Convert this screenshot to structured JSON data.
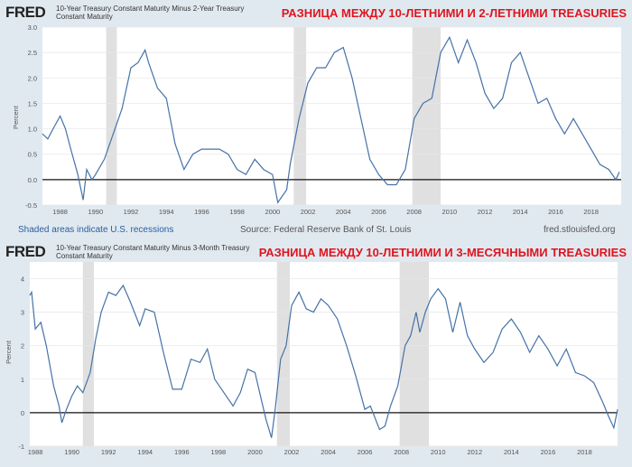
{
  "logo": "FRED",
  "colors": {
    "line": "#4572a7",
    "recession": "#e0e0e0",
    "annotation": "#e0141e",
    "background": "#e1e9f0"
  },
  "footer": {
    "note": "Shaded areas indicate U.S. recessions",
    "source": "Source: Federal Reserve Bank of St. Louis",
    "site": "fred.stlouisfed.org"
  },
  "chart_data": [
    {
      "type": "line",
      "series_title": "10-Year Treasury Constant Maturity Minus 2-Year Treasury Constant Maturity",
      "annotation": "РАЗНИЦА МЕЖДУ 10-ЛЕТНИМИ И 2-ЛЕТНИМИ TREASURIES",
      "ylabel": "Percent",
      "xlim": [
        1987.0,
        2019.7
      ],
      "ylim": [
        -0.5,
        3.0
      ],
      "yticks": [
        "-0.5",
        "0.0",
        "0.5",
        "1.0",
        "1.5",
        "2.0",
        "2.5",
        "3.0"
      ],
      "xticks": [
        "1988",
        "1990",
        "1992",
        "1994",
        "1996",
        "1998",
        "2000",
        "2002",
        "2004",
        "2006",
        "2008",
        "2010",
        "2012",
        "2014",
        "2016",
        "2018"
      ],
      "grid": true,
      "recessions": [
        [
          1990.6,
          1991.2
        ],
        [
          2001.2,
          2001.9
        ],
        [
          2007.9,
          2009.5
        ]
      ],
      "x": [
        1987.0,
        1987.3,
        1987.6,
        1988.0,
        1988.3,
        1988.6,
        1989.0,
        1989.3,
        1989.5,
        1989.8,
        1990.0,
        1990.5,
        1991.0,
        1991.5,
        1992.0,
        1992.4,
        1992.8,
        1993.0,
        1993.5,
        1994.0,
        1994.5,
        1995.0,
        1995.5,
        1996.0,
        1996.5,
        1997.0,
        1997.5,
        1998.0,
        1998.5,
        1999.0,
        1999.5,
        2000.0,
        2000.3,
        2000.8,
        2001.0,
        2001.5,
        2002.0,
        2002.5,
        2003.0,
        2003.5,
        2004.0,
        2004.5,
        2005.0,
        2005.5,
        2006.0,
        2006.5,
        2007.0,
        2007.5,
        2008.0,
        2008.5,
        2009.0,
        2009.5,
        2010.0,
        2010.5,
        2011.0,
        2011.5,
        2012.0,
        2012.5,
        2013.0,
        2013.5,
        2014.0,
        2014.5,
        2015.0,
        2015.5,
        2016.0,
        2016.5,
        2017.0,
        2017.5,
        2018.0,
        2018.5,
        2019.0,
        2019.4,
        2019.6
      ],
      "values": [
        0.9,
        0.8,
        1.0,
        1.25,
        1.0,
        0.6,
        0.1,
        -0.4,
        0.2,
        0.0,
        0.1,
        0.4,
        0.9,
        1.4,
        2.2,
        2.3,
        2.55,
        2.3,
        1.8,
        1.6,
        0.7,
        0.2,
        0.5,
        0.6,
        0.6,
        0.6,
        0.5,
        0.2,
        0.1,
        0.4,
        0.2,
        0.1,
        -0.45,
        -0.2,
        0.3,
        1.2,
        1.9,
        2.2,
        2.2,
        2.5,
        2.6,
        2.0,
        1.2,
        0.4,
        0.1,
        -0.1,
        -0.1,
        0.2,
        1.2,
        1.5,
        1.6,
        2.5,
        2.8,
        2.3,
        2.75,
        2.3,
        1.7,
        1.4,
        1.6,
        2.3,
        2.5,
        2.0,
        1.5,
        1.6,
        1.2,
        0.9,
        1.2,
        0.9,
        0.6,
        0.3,
        0.2,
        0.0,
        0.15
      ]
    },
    {
      "type": "line",
      "series_title": "10-Year Treasury Constant Maturity Minus 3-Month Treasury Constant Maturity",
      "annotation": "РАЗНИЦА МЕЖДУ 10-ЛЕТНИМИ И 3-МЕСЯЧНЫМИ TREASURIES",
      "ylabel": "Percent",
      "xlim": [
        1987.7,
        2019.8
      ],
      "ylim": [
        -1,
        4.5
      ],
      "yticks": [
        "-1",
        "0",
        "1",
        "2",
        "3",
        "4"
      ],
      "xticks": [
        "1988",
        "1990",
        "1992",
        "1994",
        "1996",
        "1998",
        "2000",
        "2002",
        "2004",
        "2006",
        "2008",
        "2010",
        "2012",
        "2014",
        "2016",
        "2018"
      ],
      "grid": true,
      "recessions": [
        [
          1990.6,
          1991.2
        ],
        [
          2001.2,
          2001.9
        ],
        [
          2007.9,
          2009.5
        ]
      ],
      "x": [
        1987.7,
        1987.8,
        1988.0,
        1988.3,
        1988.6,
        1989.0,
        1989.3,
        1989.45,
        1989.7,
        1990.0,
        1990.3,
        1990.6,
        1991.0,
        1991.3,
        1991.6,
        1992.0,
        1992.4,
        1992.8,
        1993.2,
        1993.7,
        1994.0,
        1994.5,
        1995.0,
        1995.5,
        1996.0,
        1996.5,
        1997.0,
        1997.4,
        1997.8,
        1998.3,
        1998.8,
        1999.2,
        1999.6,
        2000.0,
        2000.3,
        2000.6,
        2000.9,
        2001.1,
        2001.4,
        2001.7,
        2002.0,
        2002.4,
        2002.8,
        2003.2,
        2003.6,
        2004.0,
        2004.5,
        2005.0,
        2005.5,
        2006.0,
        2006.3,
        2006.8,
        2007.1,
        2007.4,
        2007.8,
        2008.2,
        2008.5,
        2008.8,
        2009.0,
        2009.3,
        2009.6,
        2010.0,
        2010.4,
        2010.8,
        2011.2,
        2011.6,
        2012.0,
        2012.5,
        2013.0,
        2013.5,
        2014.0,
        2014.5,
        2015.0,
        2015.5,
        2016.0,
        2016.5,
        2017.0,
        2017.5,
        2018.0,
        2018.5,
        2019.0,
        2019.3,
        2019.6,
        2019.8
      ],
      "values": [
        3.5,
        3.6,
        2.5,
        2.7,
        2.0,
        0.8,
        0.2,
        -0.3,
        0.1,
        0.5,
        0.8,
        0.6,
        1.2,
        2.2,
        3.0,
        3.6,
        3.5,
        3.8,
        3.3,
        2.6,
        3.1,
        3.0,
        1.8,
        0.7,
        0.7,
        1.6,
        1.5,
        1.9,
        1.0,
        0.6,
        0.2,
        0.6,
        1.3,
        1.2,
        0.5,
        -0.2,
        -0.75,
        0.1,
        1.6,
        2.0,
        3.2,
        3.6,
        3.1,
        3.0,
        3.4,
        3.2,
        2.8,
        2.0,
        1.1,
        0.1,
        0.2,
        -0.5,
        -0.4,
        0.2,
        0.8,
        2.0,
        2.3,
        3.0,
        2.4,
        3.0,
        3.4,
        3.7,
        3.4,
        2.4,
        3.3,
        2.3,
        1.9,
        1.5,
        1.8,
        2.5,
        2.8,
        2.4,
        1.8,
        2.3,
        1.9,
        1.4,
        1.9,
        1.2,
        1.1,
        0.9,
        0.3,
        -0.1,
        -0.45,
        0.1
      ]
    }
  ]
}
